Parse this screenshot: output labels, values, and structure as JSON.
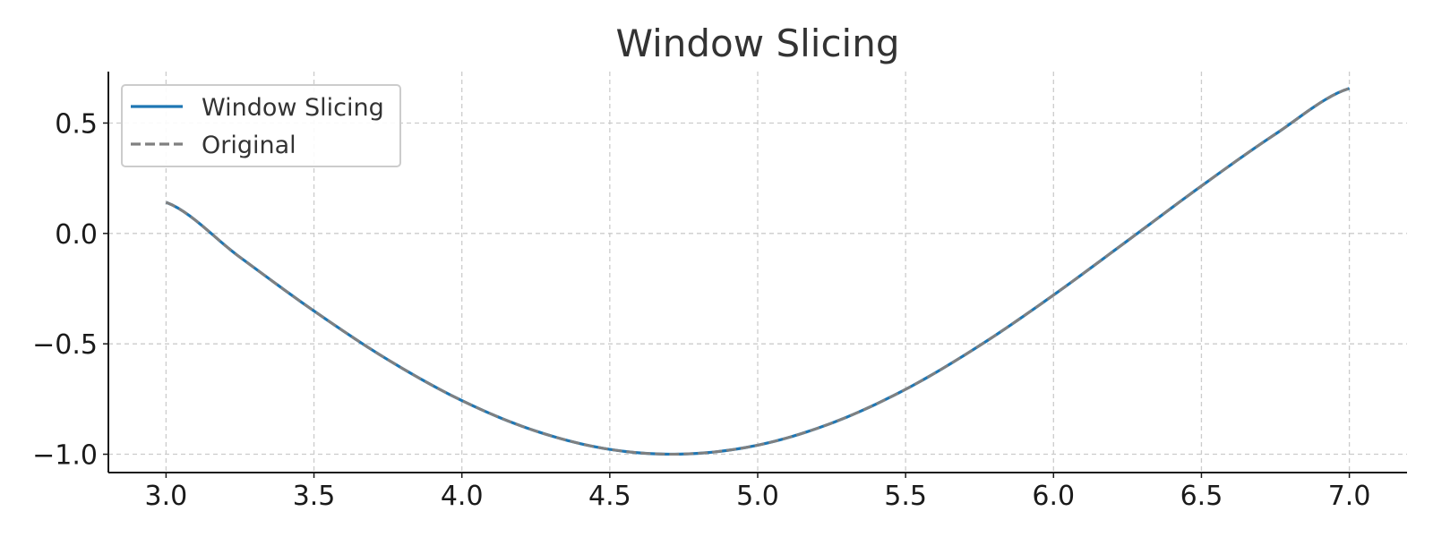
{
  "chart_data": {
    "type": "line",
    "title": "Window Slicing",
    "xlabel": "",
    "ylabel": "",
    "xlim": [
      2.805,
      7.195
    ],
    "ylim": [
      -1.083,
      0.733
    ],
    "x_ticks": [
      3.0,
      3.5,
      4.0,
      4.5,
      5.0,
      5.5,
      6.0,
      6.5,
      7.0
    ],
    "y_ticks": [
      0.5,
      0.0,
      -0.5,
      -1.0
    ],
    "x_tick_labels": [
      "3.0",
      "3.5",
      "4.0",
      "4.5",
      "5.0",
      "5.5",
      "6.0",
      "6.5",
      "7.0"
    ],
    "y_tick_labels": [
      "0.5",
      "0.0",
      "−0.5",
      "−1.0"
    ],
    "grid": true,
    "legend_position": "top-left",
    "series": [
      {
        "name": "Window Slicing",
        "color": "#1f77b4",
        "style": "solid",
        "x": [
          3.0,
          3.25,
          3.5,
          3.75,
          4.0,
          4.25,
          4.5,
          4.75,
          5.0,
          5.25,
          5.5,
          5.75,
          6.0,
          6.25,
          6.5,
          6.75,
          7.0
        ],
        "y": [
          0.141,
          -0.108,
          -0.351,
          -0.572,
          -0.757,
          -0.895,
          -0.978,
          -0.999,
          -0.959,
          -0.859,
          -0.706,
          -0.508,
          -0.279,
          -0.033,
          0.215,
          0.45,
          0.657
        ]
      },
      {
        "name": "Original",
        "color": "#808080",
        "style": "dashed",
        "x": [
          3.0,
          3.25,
          3.5,
          3.75,
          4.0,
          4.25,
          4.5,
          4.75,
          5.0,
          5.25,
          5.5,
          5.75,
          6.0,
          6.25,
          6.5,
          6.75,
          7.0
        ],
        "y": [
          0.141,
          -0.108,
          -0.351,
          -0.572,
          -0.757,
          -0.895,
          -0.978,
          -0.999,
          -0.959,
          -0.859,
          -0.706,
          -0.508,
          -0.279,
          -0.033,
          0.215,
          0.45,
          0.657
        ]
      }
    ]
  }
}
